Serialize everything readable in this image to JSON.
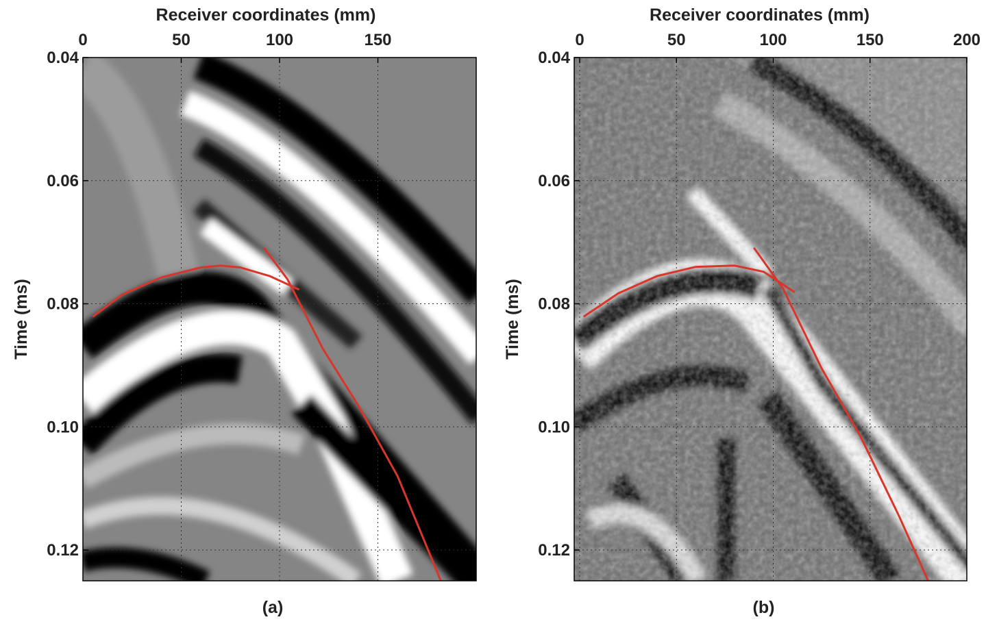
{
  "chart_data": [
    {
      "type": "line",
      "caption": "(a)",
      "x_label": "Receiver coordinates (mm)",
      "y_label": "Time (ms)",
      "xlim": [
        0,
        200
      ],
      "xticks": [
        0,
        50,
        100,
        150
      ],
      "ylim": [
        0.125,
        0.04
      ],
      "yticks": [
        0.04,
        0.06,
        0.08,
        {
          "value": 0.1,
          "label": "0.10"
        },
        0.12
      ],
      "grid": true,
      "series": [
        {
          "color": "#d9362b",
          "x": [
            5,
            20,
            40,
            60,
            70,
            80,
            95,
            110
          ],
          "values": [
            0.0821,
            0.0785,
            0.0757,
            0.0741,
            0.0738,
            0.0741,
            0.0755,
            0.0777
          ]
        },
        {
          "color": "#d9362b",
          "x": [
            92,
            104,
            122,
            140,
            160,
            182
          ],
          "values": [
            0.0709,
            0.076,
            0.0873,
            0.0965,
            0.108,
            0.125
          ]
        }
      ]
    },
    {
      "type": "line",
      "caption": "(b)",
      "x_label": "Receiver coordinates (mm)",
      "y_label": "Time (ms)",
      "xlim": [
        0,
        200
      ],
      "xticks": [
        0,
        50,
        100,
        150,
        200
      ],
      "ylim": [
        0.125,
        0.04
      ],
      "yticks": [
        0.04,
        0.06,
        0.08,
        {
          "value": 0.1,
          "label": "0.10"
        },
        0.12
      ],
      "grid": true,
      "series": [
        {
          "color": "#d9362b",
          "x": [
            2,
            20,
            40,
            60,
            80,
            95,
            111
          ],
          "values": [
            0.0821,
            0.0783,
            0.0755,
            0.074,
            0.0738,
            0.0748,
            0.0781
          ]
        },
        {
          "color": "#d9362b",
          "x": [
            90,
            105,
            125,
            145,
            165,
            180
          ],
          "values": [
            0.0709,
            0.0775,
            0.0905,
            0.1015,
            0.1145,
            0.125
          ]
        }
      ]
    }
  ]
}
